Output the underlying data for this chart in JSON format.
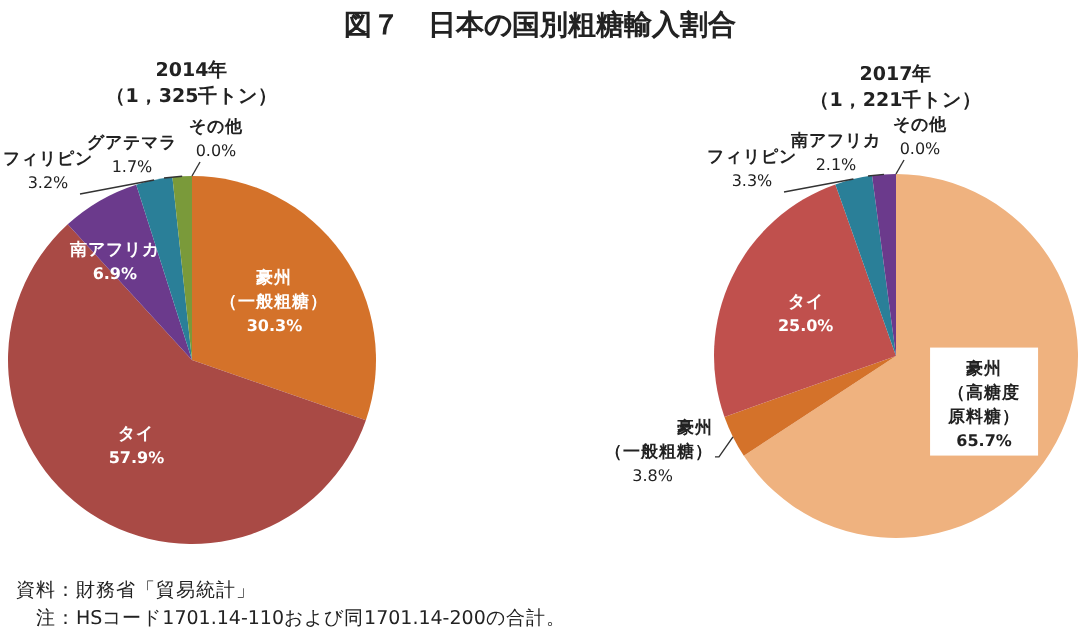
{
  "chart_data": [
    {
      "type": "pie",
      "title": "2014年（1，325千トン）",
      "categories": [
        "豪州（一般粗糖）",
        "タイ",
        "南アフリカ",
        "フィリピン",
        "グアテマラ",
        "その他"
      ],
      "values": [
        30.3,
        57.9,
        6.9,
        3.2,
        1.7,
        0.0
      ],
      "value_labels": [
        "30.3%",
        "57.9%",
        "6.9%",
        "3.2%",
        "1.7%",
        "0.0%"
      ],
      "colors": [
        "#d4722a",
        "#a94a45",
        "#6b3a8c",
        "#2a7f98",
        "#7a9a3a",
        "#c8c8c8"
      ],
      "annotations": [
        "図７　日本の国別粗糖輸入割合",
        "資料：財務省「貿易統計」",
        "　注：HSコード1701.14-110および同1701.14-200の合計。"
      ]
    },
    {
      "type": "pie",
      "title": "2017年（1，221千トン）",
      "categories": [
        "豪州（高糖度原料糖）",
        "豪州（一般粗糖）",
        "タイ",
        "フィリピン",
        "南アフリカ",
        "その他"
      ],
      "values": [
        65.7,
        3.8,
        25.0,
        3.3,
        2.1,
        0.0
      ],
      "value_labels": [
        "65.7%",
        "3.8%",
        "25.0%",
        "3.3%",
        "2.1%",
        "0.0%"
      ],
      "colors": [
        "#efb27f",
        "#d4722a",
        "#c0504d",
        "#2a7f98",
        "#6b3a8c",
        "#c8c8c8"
      ]
    }
  ]
}
